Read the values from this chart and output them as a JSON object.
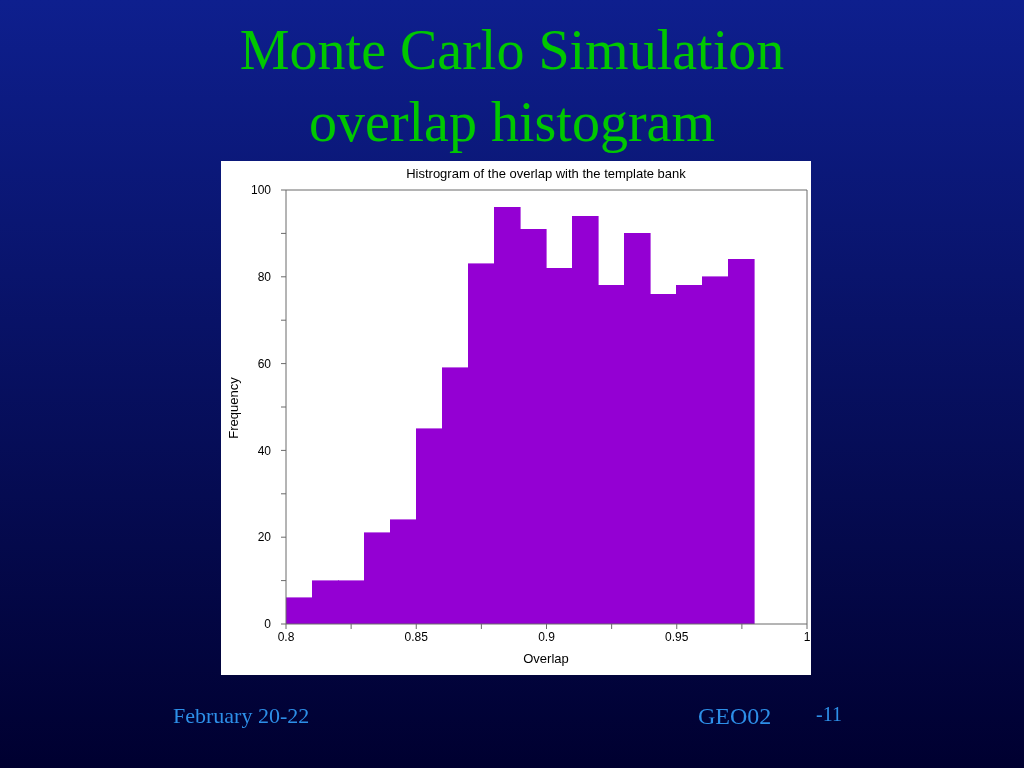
{
  "chart_data": {
    "type": "histogram",
    "title": "Monte Carlo Simulation overlap histogram",
    "subtitle": "Histrogram of the overlap with the template bank",
    "xlabel": "Overlap",
    "ylabel": "Frequency",
    "bins": [
      0.8,
      0.81,
      0.82,
      0.83,
      0.84,
      0.85,
      0.86,
      0.87,
      0.88,
      0.89,
      0.9,
      0.91,
      0.92,
      0.93,
      0.94,
      0.95,
      0.96,
      0.97,
      0.98
    ],
    "values": [
      6,
      10,
      10,
      21,
      24,
      45,
      59,
      83,
      96,
      91,
      82,
      94,
      78,
      90,
      76,
      78,
      80,
      84
    ],
    "color": "#9400d3",
    "xlim": [
      0.8,
      1
    ],
    "xticks": [
      0.8,
      {
        "value": 0.825,
        "label": null
      },
      0.85,
      {
        "value": 0.875,
        "label": null
      },
      0.9,
      {
        "value": 0.925,
        "label": null
      },
      0.95,
      {
        "value": 0.975,
        "label": null
      },
      1
    ],
    "ylim": [
      0,
      100
    ],
    "yticks": [
      0,
      {
        "value": 10,
        "label": null
      },
      20,
      {
        "value": 30,
        "label": null
      },
      40,
      {
        "value": 50,
        "label": null
      },
      60,
      {
        "value": 70,
        "label": null
      },
      80,
      {
        "value": 90,
        "label": null
      },
      100
    ],
    "annotations": [
      "February 20-22",
      "GEO02",
      "-11"
    ]
  }
}
